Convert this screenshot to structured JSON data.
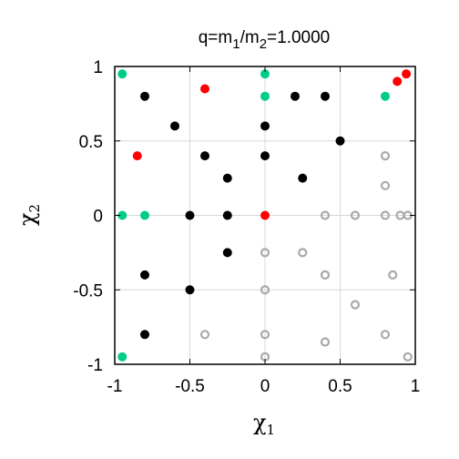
{
  "chart_data": {
    "type": "scatter",
    "title_main": "q=m",
    "title_sub1": "1",
    "title_mid": "/m",
    "title_sub2": "2",
    "title_tail": "=1.0000",
    "xlabel": "χ",
    "xlabel_sub": "1",
    "ylabel": "χ",
    "ylabel_sub": "2",
    "xlim": [
      -1,
      1
    ],
    "ylim": [
      -1,
      1
    ],
    "x_ticks": [
      -1,
      -0.5,
      0,
      0.5,
      1
    ],
    "y_ticks": [
      -1,
      -0.5,
      0,
      0.5,
      1
    ],
    "x_tick_labels": [
      "-1",
      "-0.5",
      "0",
      "0.5",
      "1"
    ],
    "y_tick_labels": [
      "-1",
      "-0.5",
      "0",
      "0.5",
      "1"
    ],
    "grid": true,
    "series": [
      {
        "color": "#000000",
        "marker": "filled",
        "points": [
          [
            -0.8,
            0.8
          ],
          [
            -0.6,
            0.6
          ],
          [
            -0.4,
            0.4
          ],
          [
            -0.25,
            0.25
          ],
          [
            -0.5,
            0.0
          ],
          [
            -0.25,
            0.0
          ],
          [
            -0.25,
            -0.25
          ],
          [
            -0.8,
            -0.4
          ],
          [
            -0.5,
            -0.5
          ],
          [
            -0.8,
            -0.8
          ],
          [
            0.0,
            0.6
          ],
          [
            0.0,
            0.4
          ],
          [
            0.2,
            0.8
          ],
          [
            0.4,
            0.8
          ],
          [
            0.5,
            0.5
          ],
          [
            0.25,
            0.25
          ]
        ]
      },
      {
        "color": "#ff0000",
        "marker": "filled",
        "points": [
          [
            -0.4,
            0.85
          ],
          [
            -0.85,
            0.4
          ],
          [
            0.0,
            0.0
          ],
          [
            0.88,
            0.9
          ],
          [
            0.94,
            0.95
          ]
        ]
      },
      {
        "color": "#00cc88",
        "marker": "filled",
        "points": [
          [
            -0.95,
            0.95
          ],
          [
            -0.95,
            0.0
          ],
          [
            -0.8,
            0.0
          ],
          [
            -0.95,
            -0.95
          ],
          [
            0.0,
            0.95
          ],
          [
            0.0,
            0.8
          ],
          [
            0.8,
            0.8
          ]
        ]
      },
      {
        "color": "#aaaaaa",
        "marker": "ring",
        "points": [
          [
            0.8,
            0.4
          ],
          [
            0.8,
            0.2
          ],
          [
            0.4,
            0.0
          ],
          [
            0.6,
            0.0
          ],
          [
            0.8,
            0.0
          ],
          [
            0.9,
            0.0
          ],
          [
            0.95,
            0.0
          ],
          [
            0.0,
            -0.25
          ],
          [
            0.25,
            -0.25
          ],
          [
            0.4,
            -0.4
          ],
          [
            0.85,
            -0.4
          ],
          [
            0.0,
            -0.5
          ],
          [
            0.6,
            -0.6
          ],
          [
            -0.4,
            -0.8
          ],
          [
            0.0,
            -0.8
          ],
          [
            0.4,
            -0.85
          ],
          [
            0.8,
            -0.8
          ],
          [
            0.0,
            -0.95
          ],
          [
            0.95,
            -0.95
          ]
        ]
      }
    ]
  }
}
